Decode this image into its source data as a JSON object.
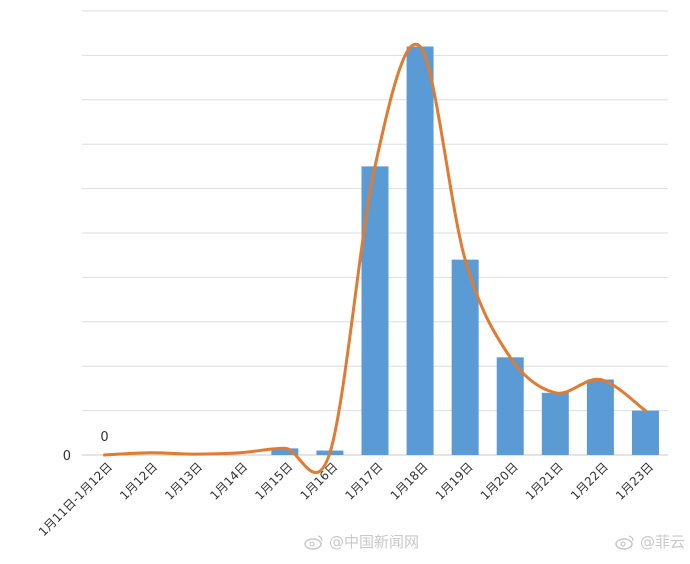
{
  "chart_data": {
    "type": "bar",
    "categories": [
      "1月11日-1月12日",
      "1月12日",
      "1月13日",
      "1月14日",
      "1月15日",
      "1月16日",
      "1月17日",
      "1月18日",
      "1月19日",
      "1月20日",
      "1月21日",
      "1月22日",
      "1月23日"
    ],
    "series": [
      {
        "values": [
          0,
          0,
          0,
          0,
          0.15,
          0.1,
          6.5,
          9.2,
          4.4,
          2.2,
          1.4,
          1.7,
          1.0
        ]
      }
    ],
    "trendline": {
      "type": "smoothed-line",
      "values": [
        0,
        0.05,
        0.02,
        0.05,
        0.15,
        0.05,
        6.5,
        9.2,
        4.4,
        2.2,
        1.4,
        1.7,
        1.0
      ]
    },
    "ylim": [
      0,
      10
    ],
    "ytick_labels": [
      "0"
    ],
    "data_labels": [
      {
        "category_index": 0,
        "text": "0"
      }
    ],
    "grid": true,
    "bar_color": "#5b9bd5",
    "line_color": "#e07b32"
  },
  "watermarks": {
    "left_text": "@中国新闻网",
    "right_text": "@菲云",
    "left_icon": "weibo-icon",
    "right_icon": "weibo-icon"
  }
}
